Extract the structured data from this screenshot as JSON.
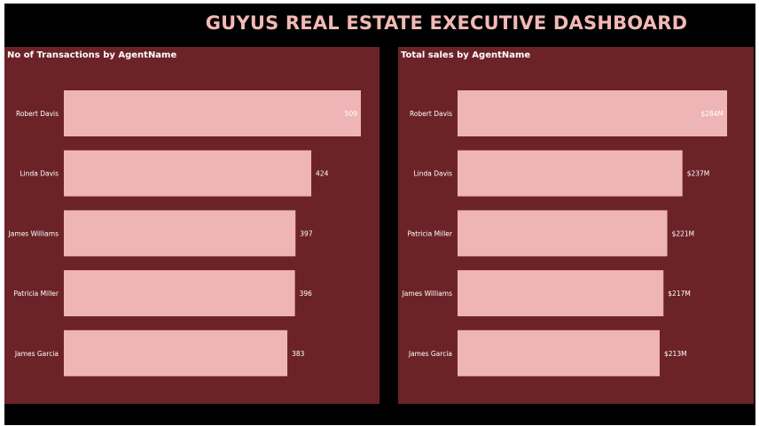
{
  "dashboard": {
    "title": "GUYUS REAL ESTATE EXECUTIVE DASHBOARD"
  },
  "colors": {
    "background": "#000000",
    "panel": "#6b2328",
    "bar": "#efb4b5",
    "title": "#f2b9b4",
    "text": "#ffffff"
  },
  "chart_data": [
    {
      "type": "bar",
      "orientation": "horizontal",
      "title": "No of Transactions by AgentName",
      "categories": [
        "Robert Davis",
        "Linda Davis",
        "James Williams",
        "Patricia Miller",
        "James Garcia"
      ],
      "values": [
        509,
        424,
        397,
        396,
        383
      ],
      "data_labels": [
        "509",
        "424",
        "397",
        "396",
        "383"
      ],
      "xlim": [
        0,
        509
      ],
      "grid": false,
      "legend": "none"
    },
    {
      "type": "bar",
      "orientation": "horizontal",
      "title": "Total sales by AgentName",
      "categories": [
        "Robert Davis",
        "Linda Davis",
        "Patricia Miller",
        "James Williams",
        "James Garcia"
      ],
      "values": [
        284,
        237,
        221,
        217,
        213
      ],
      "unit": "$M",
      "data_labels": [
        "$284M",
        "$237M",
        "$221M",
        "$217M",
        "$213M"
      ],
      "xlim": [
        0,
        284
      ],
      "grid": false,
      "legend": "none"
    }
  ]
}
